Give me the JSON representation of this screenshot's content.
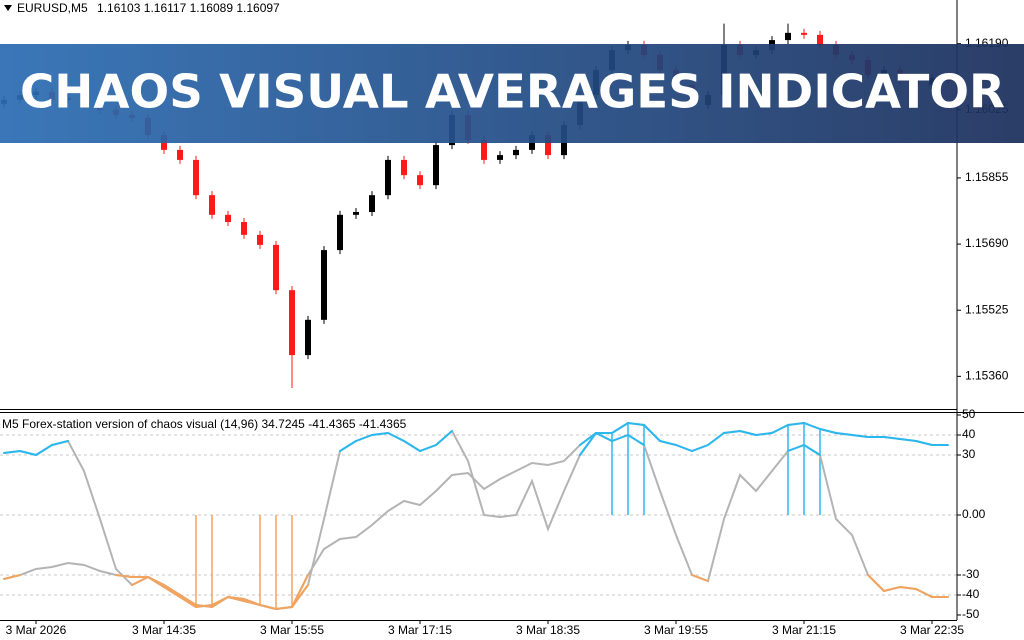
{
  "banner": "CHAOS VISUAL AVERAGES INDICATOR",
  "chart_data": [
    {
      "type": "candlestick",
      "title": "EURUSD,M5",
      "ohlc": [
        1.16103,
        1.16117,
        1.16089,
        1.16097
      ],
      "up_color": "#000000",
      "down_color": "#ff1a1a",
      "open": [
        1.1604,
        1.1605,
        1.16062,
        1.1607,
        1.1605,
        1.16055,
        1.16037,
        1.16025,
        1.16012,
        1.16005,
        1.15962,
        1.15925,
        1.159,
        1.15812,
        1.15763,
        1.15745,
        1.15713,
        1.15688,
        1.15575,
        1.15413,
        1.15501,
        1.15675,
        1.15763,
        1.1577,
        1.15812,
        1.159,
        1.15862,
        1.15837,
        1.15937,
        1.16012,
        1.1595,
        1.159,
        1.15912,
        1.15925,
        1.15962,
        1.15912,
        1.15987,
        1.16062,
        1.16124,
        1.16174,
        1.16187,
        1.16162,
        1.16124,
        1.16087,
        1.16037,
        1.16062,
        1.16187,
        1.16162,
        1.16174,
        1.16199,
        1.16217,
        1.16212,
        1.16187,
        1.16162,
        1.16149,
        1.16112,
        1.16124,
        1.16099,
        1.16087,
        1.16103
      ],
      "high": [
        1.1606,
        1.16072,
        1.1608,
        1.1608,
        1.16065,
        1.16065,
        1.16047,
        1.16035,
        1.16022,
        1.16015,
        1.15972,
        1.15935,
        1.1591,
        1.15822,
        1.15773,
        1.15755,
        1.15723,
        1.15698,
        1.15585,
        1.15511,
        1.15685,
        1.15773,
        1.1578,
        1.15822,
        1.1591,
        1.1591,
        1.15872,
        1.15947,
        1.16022,
        1.16022,
        1.1596,
        1.15922,
        1.15935,
        1.15972,
        1.15972,
        1.15997,
        1.16072,
        1.16134,
        1.16184,
        1.16197,
        1.16197,
        1.16172,
        1.16134,
        1.16097,
        1.16072,
        1.1624,
        1.16197,
        1.16184,
        1.16209,
        1.1624,
        1.16227,
        1.16222,
        1.16197,
        1.16172,
        1.16159,
        1.16134,
        1.16134,
        1.16109,
        1.16114,
        1.16117
      ],
      "low": [
        1.1603,
        1.1604,
        1.16052,
        1.1604,
        1.1604,
        1.16027,
        1.16015,
        1.16002,
        1.15995,
        1.15952,
        1.15915,
        1.1589,
        1.15802,
        1.15753,
        1.15735,
        1.15703,
        1.15678,
        1.15565,
        1.15331,
        1.15403,
        1.15491,
        1.15665,
        1.15753,
        1.1576,
        1.15802,
        1.15852,
        1.15827,
        1.15827,
        1.15927,
        1.1594,
        1.1589,
        1.1589,
        1.15902,
        1.15915,
        1.15902,
        1.15902,
        1.15977,
        1.16052,
        1.16114,
        1.16164,
        1.16152,
        1.16114,
        1.16077,
        1.16027,
        1.16027,
        1.16052,
        1.16152,
        1.16152,
        1.16164,
        1.16189,
        1.16202,
        1.16177,
        1.16152,
        1.16139,
        1.16102,
        1.16102,
        1.16089,
        1.16077,
        1.16077,
        1.16089
      ],
      "close": [
        1.1605,
        1.16062,
        1.1607,
        1.1605,
        1.16055,
        1.16037,
        1.16025,
        1.16012,
        1.16005,
        1.15962,
        1.15925,
        1.159,
        1.15812,
        1.15763,
        1.15745,
        1.15713,
        1.15688,
        1.15575,
        1.15413,
        1.15501,
        1.15675,
        1.15763,
        1.1577,
        1.15812,
        1.159,
        1.15862,
        1.15837,
        1.15937,
        1.16012,
        1.1595,
        1.159,
        1.15912,
        1.15925,
        1.15962,
        1.15912,
        1.15987,
        1.16062,
        1.16124,
        1.16174,
        1.16187,
        1.16162,
        1.16124,
        1.16087,
        1.16037,
        1.16062,
        1.16187,
        1.16162,
        1.16174,
        1.16199,
        1.16217,
        1.16212,
        1.16187,
        1.16162,
        1.16149,
        1.16112,
        1.16124,
        1.16099,
        1.16087,
        1.16104,
        1.16097
      ],
      "ylim": [
        1.15276,
        1.16299
      ],
      "yticks": [
        {
          "value": 1.1619,
          "label": "1.16190"
        },
        1.16025,
        1.15855,
        {
          "value": 1.1569,
          "label": "1.15690"
        },
        1.15525,
        {
          "value": 1.1536,
          "label": "1.15360"
        }
      ]
    },
    {
      "type": "line",
      "title": "M5 Forex-station version of chaos visual (14,96)",
      "readouts": [
        34.7245,
        -41.4365,
        -41.4365
      ],
      "categories": [
        null,
        null,
        "3 Mar 2026",
        null,
        null,
        null,
        null,
        null,
        null,
        null,
        "3 Mar 14:35",
        null,
        null,
        null,
        null,
        null,
        null,
        null,
        "3 Mar 15:55",
        null,
        null,
        null,
        null,
        null,
        null,
        null,
        "3 Mar 17:15",
        null,
        null,
        null,
        null,
        null,
        null,
        null,
        "3 Mar 18:35",
        null,
        null,
        null,
        null,
        null,
        null,
        null,
        "3 Mar 19:55",
        null,
        null,
        null,
        null,
        null,
        null,
        null,
        "3 Mar 21:15",
        null,
        null,
        null,
        null,
        null,
        null,
        null,
        "3 Mar 22:35",
        null
      ],
      "series": [
        {
          "color": "#b4b4b4",
          "values": [
            31,
            32,
            30,
            35,
            37,
            22,
            -2,
            -27,
            -35,
            -31,
            -36,
            -41,
            -46,
            -45,
            -41,
            -43,
            -45,
            -47,
            -46,
            -35,
            -2,
            32,
            37,
            40,
            41,
            37,
            32,
            35,
            42,
            27,
            0,
            -1,
            0,
            17,
            -7,
            12,
            30,
            41,
            41,
            46,
            45,
            37,
            35,
            32,
            35,
            41,
            42,
            40,
            41,
            45,
            46,
            43,
            41,
            40,
            39,
            39,
            38,
            37,
            35,
            35
          ]
        },
        {
          "color": "#b4b4b4",
          "values": [
            -32,
            -30,
            -27,
            -26,
            -24,
            -25,
            -28,
            -30,
            -31,
            -31,
            -35,
            -40,
            -45,
            -46,
            -41,
            -42,
            -45,
            -47,
            -46,
            -30,
            -17,
            -12,
            -11,
            -5,
            2,
            7,
            5,
            12,
            20,
            21,
            13,
            18,
            22,
            26,
            25,
            27,
            35,
            41,
            37,
            40,
            35,
            12,
            -10,
            -30,
            -33,
            -2,
            20,
            12,
            22,
            32,
            35,
            30,
            -2,
            -10,
            -30,
            -38,
            -36,
            -37,
            -41,
            -41
          ]
        }
      ],
      "histogram": [
        null,
        null,
        null,
        null,
        null,
        null,
        null,
        null,
        null,
        null,
        null,
        null,
        -46,
        -45,
        null,
        null,
        -45,
        -47,
        -46,
        null,
        null,
        null,
        null,
        null,
        null,
        null,
        null,
        null,
        null,
        null,
        null,
        null,
        null,
        null,
        null,
        null,
        null,
        null,
        41,
        46,
        45,
        null,
        null,
        null,
        null,
        null,
        null,
        null,
        null,
        45,
        46,
        43,
        null,
        null,
        null,
        null,
        null,
        null,
        null,
        null
      ],
      "upper_color": "#2ab8f0",
      "lower_color": "#f2a35e",
      "highlight_above": 30,
      "highlight_below": -30,
      "levels": [
        40,
        30,
        0,
        -30,
        -40
      ],
      "ylim": [
        -52,
        52
      ],
      "yticks": [
        50,
        40,
        30,
        {
          "value": 0,
          "label": "0.00"
        },
        -30,
        -40,
        -50
      ]
    }
  ]
}
